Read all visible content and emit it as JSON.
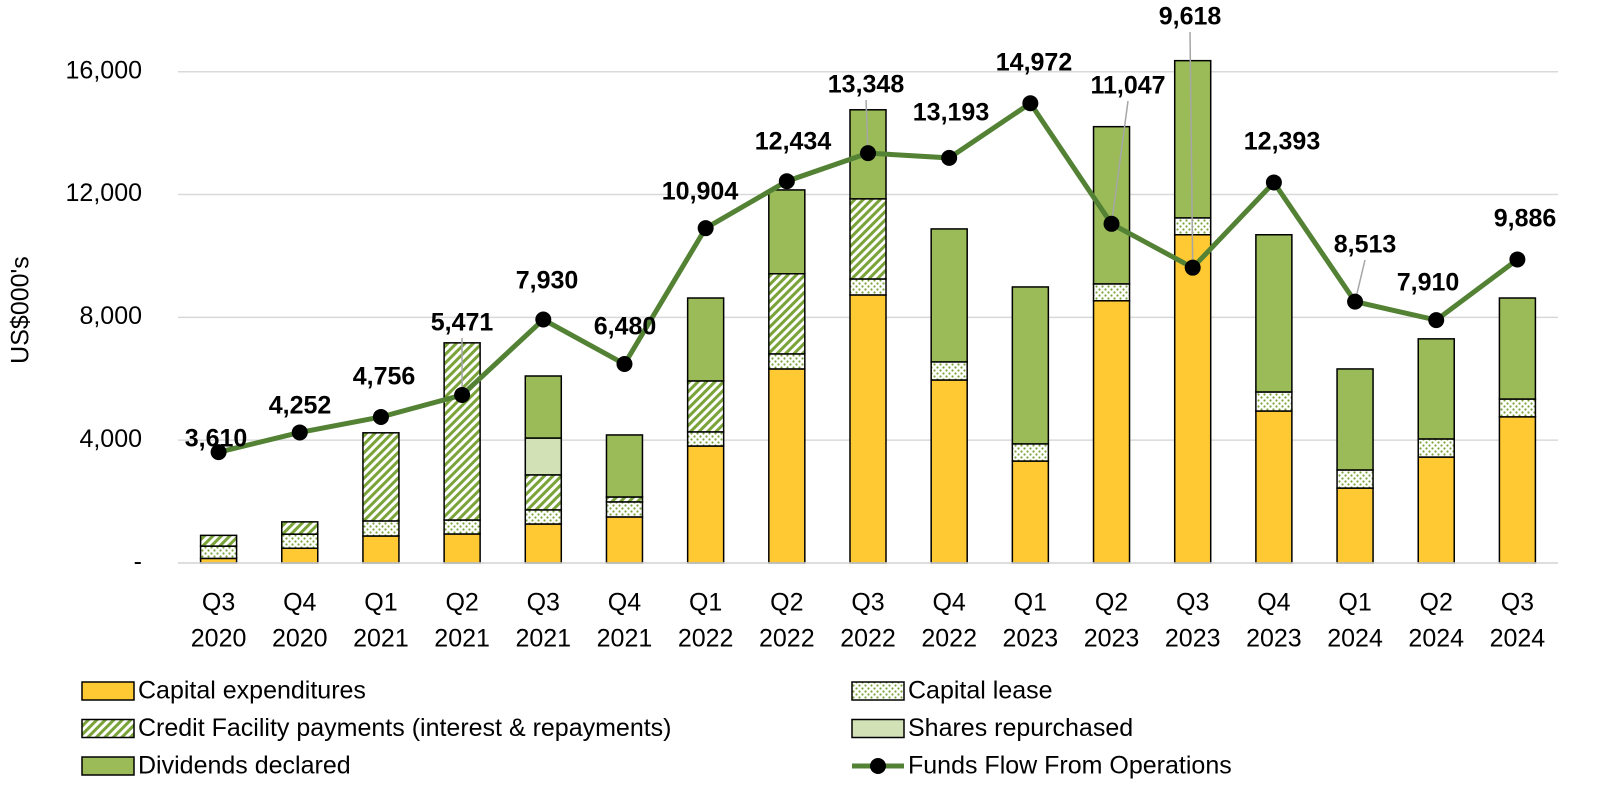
{
  "chart_data": {
    "type": "bar",
    "y_label": "US$000's",
    "categories": [
      [
        "Q3",
        "2020"
      ],
      [
        "Q4",
        "2020"
      ],
      [
        "Q1",
        "2021"
      ],
      [
        "Q2",
        "2021"
      ],
      [
        "Q3",
        "2021"
      ],
      [
        "Q4",
        "2021"
      ],
      [
        "Q1",
        "2022"
      ],
      [
        "Q2",
        "2022"
      ],
      [
        "Q3",
        "2022"
      ],
      [
        "Q4",
        "2022"
      ],
      [
        "Q1",
        "2023"
      ],
      [
        "Q2",
        "2023"
      ],
      [
        "Q3",
        "2023"
      ],
      [
        "Q4",
        "2023"
      ],
      [
        "Q1",
        "2024"
      ],
      [
        "Q2",
        "2024"
      ],
      [
        "Q3",
        "2024"
      ]
    ],
    "ylim": [
      0,
      17000
    ],
    "yticks": [
      {
        "value": 0,
        "label": "-"
      },
      {
        "value": 4000,
        "label": "4,000"
      },
      {
        "value": 8000,
        "label": "8,000"
      },
      {
        "value": 12000,
        "label": "12,000"
      },
      {
        "value": 16000,
        "label": "16,000"
      }
    ],
    "grid": true,
    "stacked": true,
    "legend": "bottom",
    "series": [
      {
        "name": "Capital expenditures",
        "color": "#ffc933",
        "pattern": "solid",
        "values": [
          150,
          480,
          880,
          945,
          1270,
          1500,
          3810,
          6320,
          8730,
          5960,
          3320,
          8540,
          10690,
          4950,
          2440,
          3450,
          4760
        ]
      },
      {
        "name": "Capital lease",
        "color": "#7aa33a",
        "pattern": "dots",
        "values": [
          400,
          460,
          490,
          455,
          460,
          490,
          460,
          490,
          520,
          590,
          560,
          550,
          550,
          620,
          590,
          590,
          580
        ]
      },
      {
        "name": "Credit Facility payments (interest & repayments)",
        "color": "#7aa33a",
        "pattern": "hatch",
        "values": [
          350,
          400,
          2870,
          5770,
          1140,
          160,
          1660,
          2610,
          2610,
          0,
          0,
          0,
          0,
          0,
          0,
          0,
          0
        ]
      },
      {
        "name": "Shares repurchased",
        "color": "#d3e2b6",
        "pattern": "solid",
        "values": [
          0,
          0,
          0,
          0,
          1200,
          0,
          0,
          0,
          0,
          0,
          0,
          0,
          0,
          0,
          0,
          0,
          0
        ]
      },
      {
        "name": "Dividends declared",
        "color": "#9bbb59",
        "pattern": "solid",
        "values": [
          0,
          0,
          0,
          0,
          2020,
          2020,
          2700,
          2730,
          2900,
          4330,
          5110,
          5120,
          5120,
          5120,
          3290,
          3260,
          3290
        ]
      },
      {
        "name": "Funds Flow From Operations",
        "color": "#548235",
        "type": "line",
        "marker_color": "#000000",
        "values": [
          3610,
          4252,
          4756,
          5471,
          7930,
          6480,
          10904,
          12434,
          13348,
          13193,
          14972,
          11047,
          9618,
          12393,
          8513,
          7910,
          9886
        ],
        "value_labels": [
          "3,610",
          "4,252",
          "4,756",
          "5,471",
          "7,930",
          "6,480",
          "10,904",
          "12,434",
          "13,348",
          "13,193",
          "14,972",
          "11,047",
          "9,618",
          "12,393",
          "8,513",
          "7,910",
          "9,886"
        ]
      }
    ]
  }
}
